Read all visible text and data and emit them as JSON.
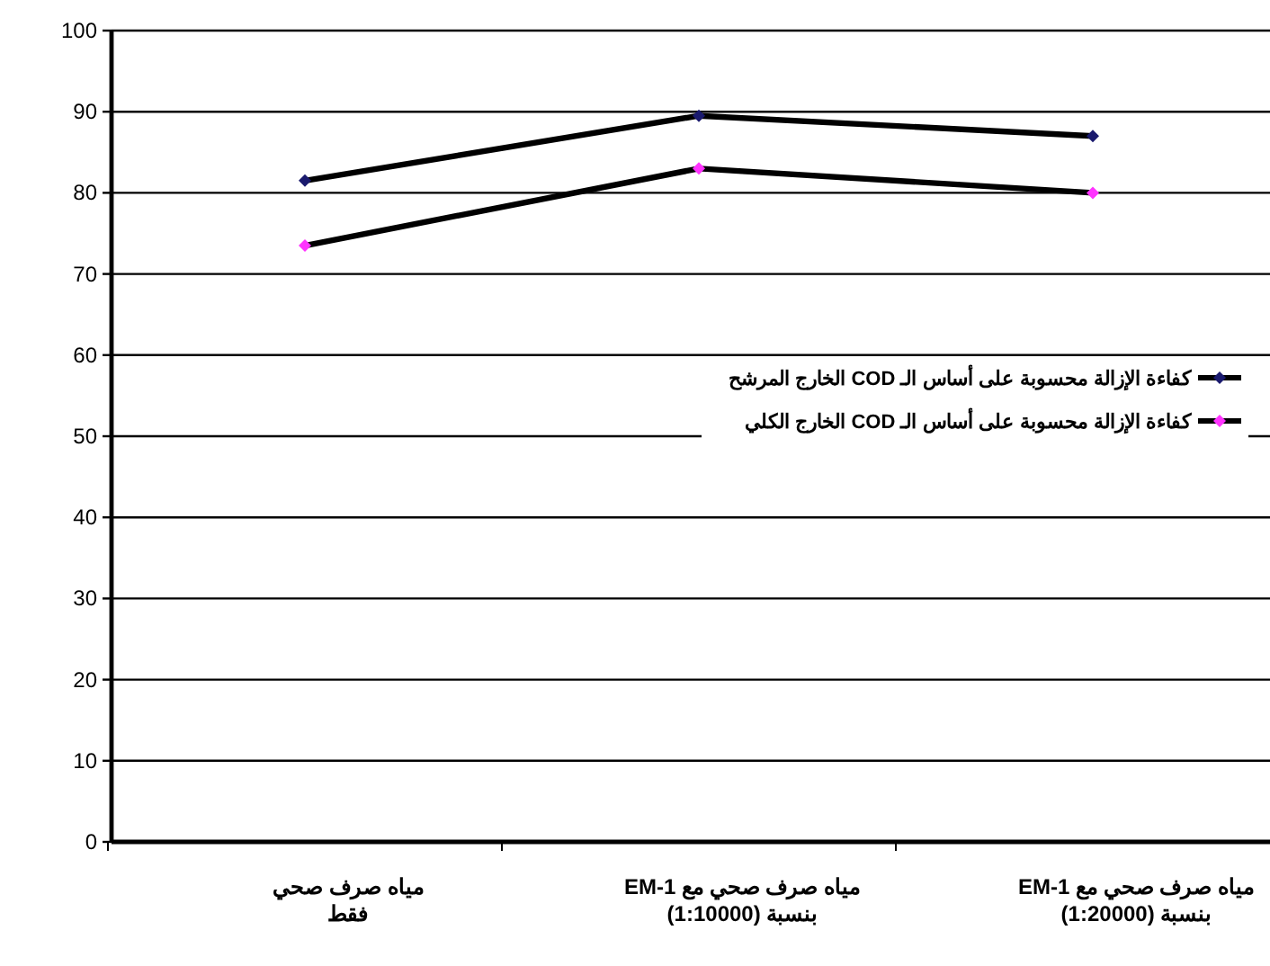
{
  "chart_data": {
    "type": "line",
    "categories": [
      "مياه صرف صحي فقط",
      "مياه صرف صحي مع EM-1 بنسبة (1:10000)",
      "مياه صرف صحي مع EM-1 بنسبة (1:20000)"
    ],
    "series": [
      {
        "name": "كفاءة الإزالة محسوبة على أساس الـ COD الخارج المرشح",
        "color": "#1a1a6e",
        "values": [
          81.5,
          89.5,
          87
        ]
      },
      {
        "name": "كفاءة الإزالة محسوبة على أساس الـ COD الخارج الكلي",
        "color": "#ff33ff",
        "values": [
          73.5,
          83,
          80
        ]
      }
    ],
    "ylim": [
      0,
      100
    ],
    "yticks": [
      0,
      10,
      20,
      30,
      40,
      50,
      60,
      70,
      80,
      90,
      100
    ],
    "grid": "y",
    "legend": "right",
    "marker": "diamond",
    "line_style": "solid"
  }
}
